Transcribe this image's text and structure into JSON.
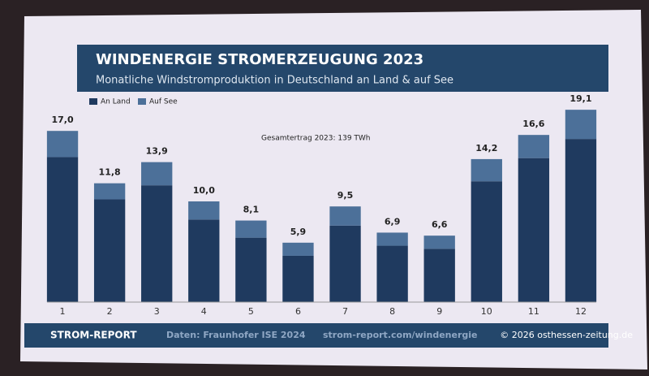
{
  "chart_data": {
    "type": "stacked_bar",
    "title": "WINDENERGIE STROMERZEUGUNG 2023",
    "subtitle": "Monatliche Windstromproduktion in Deutschland an Land & auf See",
    "annotation": "Gesamtertrag 2023: 139 TWh",
    "categories": [
      "1",
      "2",
      "3",
      "4",
      "5",
      "6",
      "7",
      "8",
      "9",
      "10",
      "11",
      "12"
    ],
    "series": [
      {
        "name": "An Land",
        "color": "#1f3a5f",
        "values": [
          14.4,
          10.2,
          11.6,
          8.2,
          6.4,
          4.6,
          7.6,
          5.6,
          5.3,
          12.0,
          14.3,
          16.2
        ]
      },
      {
        "name": "Auf See",
        "color": "#4c7099",
        "values": [
          2.6,
          1.6,
          2.3,
          1.8,
          1.7,
          1.3,
          1.9,
          1.3,
          1.3,
          2.2,
          2.3,
          2.9
        ]
      }
    ],
    "totals": {
      "values": [
        17.0,
        11.8,
        13.9,
        10.0,
        8.1,
        5.9,
        9.5,
        6.9,
        6.6,
        14.2,
        16.6,
        19.1
      ],
      "value_labels": [
        "17,0",
        "11,8",
        "13,9",
        "10,0",
        "8,1",
        "5,9",
        "9,5",
        "6,9",
        "6,6",
        "14,2",
        "16,6",
        "19,1"
      ]
    },
    "ylim": [
      0,
      20
    ],
    "legend": "top-left",
    "footer": {
      "brand": "STROM-REPORT",
      "source": "Daten: Fraunhofer ISE 2024",
      "url": "strom-report.com/windenergie"
    },
    "watermark": "© 2026 osthessen-zeitung.de"
  }
}
